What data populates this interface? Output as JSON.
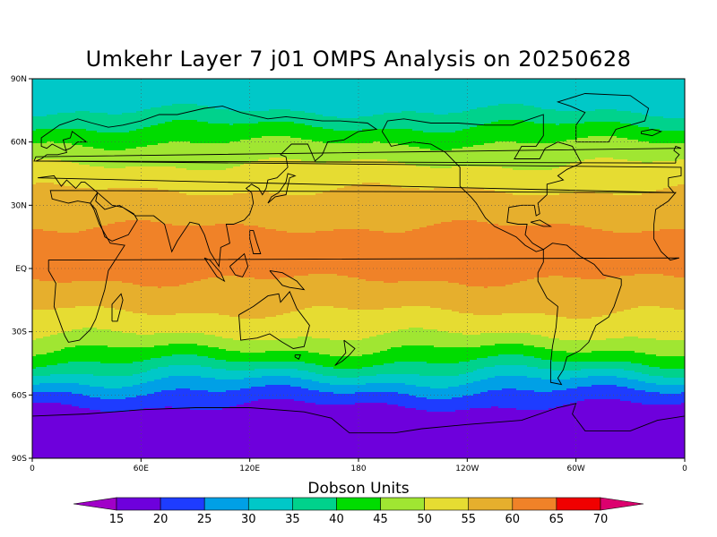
{
  "title": "Umkehr Layer 7 j01 OMPS Analysis on 20250628",
  "colorbar": {
    "label": "Dobson Units",
    "ticks": [
      "15",
      "20",
      "25",
      "30",
      "35",
      "40",
      "45",
      "50",
      "55",
      "60",
      "65",
      "70"
    ],
    "colors": [
      "#a000c8",
      "#6e00dc",
      "#1e3cff",
      "#00a0e6",
      "#00c8c8",
      "#00d28c",
      "#00dc00",
      "#a0e632",
      "#e6dc32",
      "#e6af2d",
      "#f08228",
      "#f00000",
      "#dc006e"
    ]
  },
  "axes": {
    "lat_labels": [
      "90N",
      "60N",
      "30N",
      "EQ",
      "30S",
      "60S",
      "90S"
    ],
    "lon_labels": [
      "0",
      "60E",
      "120E",
      "180",
      "120W",
      "60W",
      "0"
    ]
  },
  "chart_data": {
    "type": "heatmap",
    "title": "Umkehr Layer 7 j01 OMPS Analysis on 20250628",
    "units": "Dobson Units",
    "x": "longitude 0 to 360",
    "y": "latitude -90 to 90",
    "levels": [
      15,
      20,
      25,
      30,
      35,
      40,
      45,
      50,
      55,
      60,
      65,
      70
    ],
    "zonal_profile": [
      {
        "lat": 90,
        "value": 34
      },
      {
        "lat": 75,
        "value": 35
      },
      {
        "lat": 65,
        "value": 42
      },
      {
        "lat": 55,
        "value": 48
      },
      {
        "lat": 45,
        "value": 52
      },
      {
        "lat": 35,
        "value": 56
      },
      {
        "lat": 25,
        "value": 59
      },
      {
        "lat": 15,
        "value": 61
      },
      {
        "lat": 0,
        "value": 61
      },
      {
        "lat": -10,
        "value": 59
      },
      {
        "lat": -20,
        "value": 55
      },
      {
        "lat": -30,
        "value": 51
      },
      {
        "lat": -38,
        "value": 45
      },
      {
        "lat": -45,
        "value": 39
      },
      {
        "lat": -52,
        "value": 31
      },
      {
        "lat": -58,
        "value": 25
      },
      {
        "lat": -62,
        "value": 21
      },
      {
        "lat": -70,
        "value": 18
      },
      {
        "lat": -90,
        "value": 17
      }
    ],
    "grid": true
  }
}
